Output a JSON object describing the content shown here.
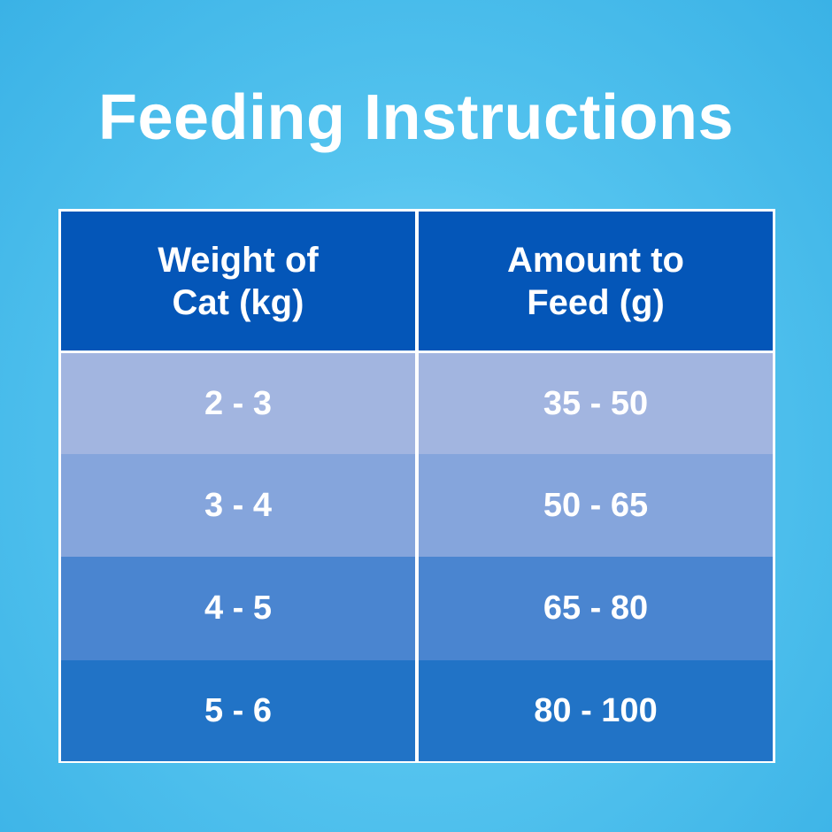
{
  "title": "Feeding Instructions",
  "headers": [
    "Weight of\nCat (kg)",
    "Amount to\nFeed (g)"
  ],
  "rows": [
    {
      "weight": "2 - 3",
      "amount": "35 - 50",
      "color": "#a2b5e0"
    },
    {
      "weight": "3 - 4",
      "amount": "50 - 65",
      "color": "#85a5dc"
    },
    {
      "weight": "4 - 5",
      "amount": "65 - 80",
      "color": "#4a85d0"
    },
    {
      "weight": "5 - 6",
      "amount": "80 - 100",
      "color": "#2173c6"
    }
  ]
}
